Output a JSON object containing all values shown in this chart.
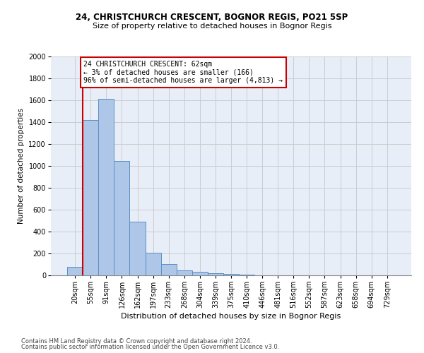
{
  "title": "24, CHRISTCHURCH CRESCENT, BOGNOR REGIS, PO21 5SP",
  "subtitle": "Size of property relative to detached houses in Bognor Regis",
  "xlabel": "Distribution of detached houses by size in Bognor Regis",
  "ylabel": "Number of detached properties",
  "categories": [
    "20sqm",
    "55sqm",
    "91sqm",
    "126sqm",
    "162sqm",
    "197sqm",
    "233sqm",
    "268sqm",
    "304sqm",
    "339sqm",
    "375sqm",
    "410sqm",
    "446sqm",
    "481sqm",
    "516sqm",
    "552sqm",
    "587sqm",
    "623sqm",
    "658sqm",
    "694sqm",
    "729sqm"
  ],
  "values": [
    80,
    1420,
    1610,
    1045,
    490,
    205,
    105,
    48,
    33,
    22,
    15,
    8,
    3,
    0,
    0,
    0,
    0,
    0,
    0,
    0,
    0
  ],
  "bar_color": "#aec6e8",
  "bar_edge_color": "#5a8fc4",
  "annotation_text": "24 CHRISTCHURCH CRESCENT: 62sqm\n← 3% of detached houses are smaller (166)\n96% of semi-detached houses are larger (4,813) →",
  "annotation_box_color": "#ffffff",
  "annotation_box_edge_color": "#cc0000",
  "vline_x": 0.5,
  "vline_color": "#cc0000",
  "ylim": [
    0,
    2000
  ],
  "yticks": [
    0,
    200,
    400,
    600,
    800,
    1000,
    1200,
    1400,
    1600,
    1800,
    2000
  ],
  "grid_color": "#cccccc",
  "ax_bg_color": "#e8eef8",
  "background_color": "#ffffff",
  "title_fontsize": 8.5,
  "subtitle_fontsize": 8.0,
  "xlabel_fontsize": 8.0,
  "ylabel_fontsize": 7.5,
  "tick_fontsize": 7.0,
  "annot_fontsize": 7.0,
  "footer_fontsize": 6.0,
  "footer_line1": "Contains HM Land Registry data © Crown copyright and database right 2024.",
  "footer_line2": "Contains public sector information licensed under the Open Government Licence v3.0."
}
